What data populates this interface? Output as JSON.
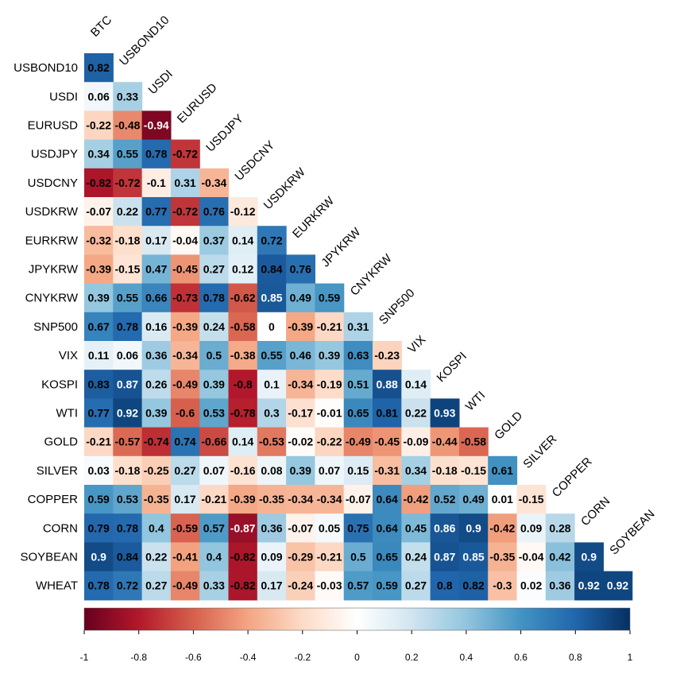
{
  "chart_data": {
    "type": "heatmap",
    "variables": [
      "BTC",
      "USBOND10",
      "USDI",
      "EURUSD",
      "USDJPY",
      "USDCNY",
      "USDKRW",
      "EURKRW",
      "JPYKRW",
      "CNYKRW",
      "SNP500",
      "VIX",
      "KOSPI",
      "WTI",
      "GOLD",
      "SILVER",
      "COPPER",
      "CORN",
      "SOYBEAN",
      "WHEAT"
    ],
    "row_labels": [
      "USBOND10",
      "USDI",
      "EURUSD",
      "USDJPY",
      "USDCNY",
      "USDKRW",
      "EURKRW",
      "JPYKRW",
      "CNYKRW",
      "SNP500",
      "VIX",
      "KOSPI",
      "WTI",
      "GOLD",
      "SILVER",
      "COPPER",
      "CORN",
      "SOYBEAN",
      "WHEAT"
    ],
    "column_labels": [
      "BTC",
      "USBOND10",
      "USDI",
      "EURUSD",
      "USDJPY",
      "USDCNY",
      "USDKRW",
      "EURKRW",
      "JPYKRW",
      "CNYKRW",
      "SNP500",
      "VIX",
      "KOSPI",
      "WTI",
      "GOLD",
      "SILVER",
      "COPPER",
      "CORN",
      "SOYBEAN"
    ],
    "values": [
      [
        0.82
      ],
      [
        0.06,
        0.33
      ],
      [
        -0.22,
        -0.48,
        -0.94
      ],
      [
        0.34,
        0.55,
        0.78,
        -0.72
      ],
      [
        -0.82,
        -0.72,
        -0.1,
        0.31,
        -0.34
      ],
      [
        -0.07,
        0.22,
        0.77,
        -0.72,
        0.76,
        -0.12
      ],
      [
        -0.32,
        -0.18,
        0.17,
        -0.04,
        0.37,
        0.14,
        0.72
      ],
      [
        -0.39,
        -0.15,
        0.47,
        -0.45,
        0.27,
        0.12,
        0.84,
        0.76
      ],
      [
        0.39,
        0.55,
        0.66,
        -0.73,
        0.78,
        -0.62,
        0.85,
        0.49,
        0.59
      ],
      [
        0.67,
        0.78,
        0.16,
        -0.39,
        0.24,
        -0.58,
        0,
        -0.39,
        -0.21,
        0.31
      ],
      [
        0.11,
        0.06,
        0.36,
        -0.34,
        0.5,
        -0.38,
        0.55,
        0.46,
        0.39,
        0.63,
        -0.23
      ],
      [
        0.83,
        0.87,
        0.26,
        -0.49,
        0.39,
        -0.8,
        0.1,
        -0.34,
        -0.19,
        0.51,
        0.88,
        0.14
      ],
      [
        0.77,
        0.92,
        0.39,
        -0.6,
        0.53,
        -0.78,
        0.3,
        -0.17,
        -0.01,
        0.65,
        0.81,
        0.22,
        0.93
      ],
      [
        -0.21,
        -0.57,
        -0.74,
        0.74,
        -0.66,
        0.14,
        -0.53,
        -0.02,
        -0.22,
        -0.49,
        -0.45,
        -0.09,
        -0.44,
        -0.58
      ],
      [
        0.03,
        -0.18,
        -0.25,
        0.27,
        0.07,
        -0.16,
        0.08,
        0.39,
        0.07,
        0.15,
        -0.31,
        0.34,
        -0.18,
        -0.15,
        0.61
      ],
      [
        0.59,
        0.53,
        -0.35,
        0.17,
        -0.21,
        -0.39,
        -0.35,
        -0.34,
        -0.34,
        -0.07,
        0.64,
        -0.42,
        0.52,
        0.49,
        0.01,
        -0.15
      ],
      [
        0.79,
        0.78,
        0.4,
        -0.59,
        0.57,
        -0.87,
        0.36,
        -0.07,
        0.05,
        0.75,
        0.64,
        0.45,
        0.86,
        0.9,
        -0.42,
        0.09,
        0.28
      ],
      [
        0.9,
        0.84,
        0.22,
        -0.41,
        0.4,
        -0.82,
        0.09,
        -0.29,
        -0.21,
        0.5,
        0.65,
        0.24,
        0.87,
        0.85,
        -0.35,
        -0.04,
        0.42,
        0.9
      ],
      [
        0.78,
        0.72,
        0.27,
        -0.49,
        0.33,
        -0.82,
        0.17,
        -0.24,
        -0.03,
        0.57,
        0.59,
        0.27,
        0.8,
        0.82,
        -0.3,
        0.02,
        0.36,
        0.92,
        0.92
      ]
    ],
    "color_scale": {
      "range": [
        -1,
        1
      ],
      "ticks": [
        -1,
        -0.8,
        -0.6,
        -0.4,
        -0.2,
        0,
        0.2,
        0.4,
        0.6,
        0.8,
        1
      ],
      "tick_labels": [
        "-1",
        "-0.8",
        "-0.6",
        "-0.4",
        "-0.2",
        "0",
        "0.2",
        "0.4",
        "0.6",
        "0.8",
        "1"
      ],
      "colors": [
        "#67001F",
        "#B2182B",
        "#D6604D",
        "#F4A582",
        "#FDDBC7",
        "#FFFFFF",
        "#D1E5F0",
        "#92C5DE",
        "#4393C3",
        "#2166AC",
        "#053061"
      ]
    },
    "legend": "bottom",
    "grid": false
  }
}
